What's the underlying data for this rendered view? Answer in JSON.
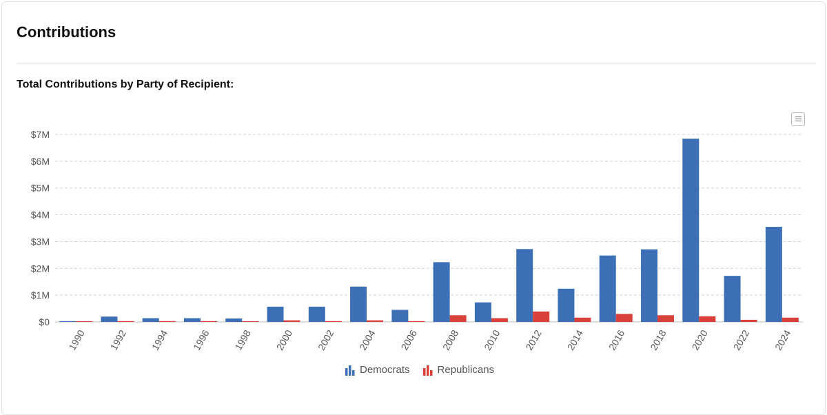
{
  "section": {
    "title": "Contributions"
  },
  "chart_heading": "Total Contributions by Party of Recipient:",
  "menu": {
    "icon": "hamburger-menu-icon"
  },
  "colors": {
    "democrats": "#3d6fb6",
    "republicans": "#d9403a",
    "grid": "#cfcfcf"
  },
  "legend": [
    {
      "label": "Democrats",
      "icon": "bar-chart-icon",
      "color": "#3d6fb6"
    },
    {
      "label": "Republicans",
      "icon": "bar-chart-icon",
      "color": "#d9403a"
    }
  ],
  "chart_data": {
    "type": "bar",
    "categories": [
      "1990",
      "1992",
      "1994",
      "1996",
      "1998",
      "2000",
      "2002",
      "2004",
      "2006",
      "2008",
      "2010",
      "2012",
      "2014",
      "2016",
      "2018",
      "2020",
      "2022",
      "2024"
    ],
    "series": [
      {
        "name": "Democrats",
        "values": [
          30000,
          200000,
          140000,
          140000,
          130000,
          570000,
          570000,
          1320000,
          450000,
          2230000,
          730000,
          2720000,
          1240000,
          2480000,
          2710000,
          6840000,
          1720000,
          3550000
        ]
      },
      {
        "name": "Republicans",
        "values": [
          10000,
          30000,
          30000,
          30000,
          20000,
          60000,
          30000,
          60000,
          30000,
          250000,
          140000,
          390000,
          160000,
          300000,
          250000,
          210000,
          80000,
          160000
        ]
      }
    ],
    "y_ticks": [
      "$0",
      "$1M",
      "$2M",
      "$3M",
      "$4M",
      "$5M",
      "$6M",
      "$7M"
    ],
    "ylim": [
      0,
      7000000
    ],
    "grid": true,
    "legend_position": "bottom-center"
  }
}
